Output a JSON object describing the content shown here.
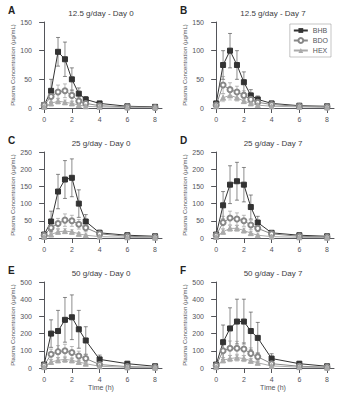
{
  "chart_data": [
    {
      "type": "line",
      "title": "12.5 g/day - Day 0",
      "annotation": "A",
      "ylabel": "Plasma Concentration (µg/mL)",
      "x": [
        0,
        0.5,
        1,
        1.5,
        2,
        2.5,
        3,
        4,
        6,
        8
      ],
      "xlim": [
        -0.3,
        8.5
      ],
      "xticks": [
        0,
        2,
        4,
        6,
        8
      ],
      "ylim": [
        0,
        150
      ],
      "yticks": [
        0,
        50,
        100,
        150
      ],
      "grid": false,
      "series": [
        {
          "name": "BHB",
          "color": "#333333",
          "marker": "square",
          "line_style": "solid",
          "values": [
            5,
            30,
            98,
            85,
            50,
            25,
            15,
            8,
            3,
            2
          ],
          "errors": [
            2,
            20,
            25,
            30,
            20,
            10,
            5,
            3,
            2,
            1
          ]
        },
        {
          "name": "BDO",
          "color": "#888888",
          "marker": "circle_open",
          "line_style": "solid",
          "values": [
            5,
            20,
            28,
            30,
            22,
            12,
            8,
            4,
            2,
            1
          ],
          "errors": [
            2,
            10,
            12,
            12,
            10,
            6,
            4,
            2,
            1,
            1
          ]
        },
        {
          "name": "HEX",
          "color": "#aaaaaa",
          "marker": "triangle",
          "line_style": "solid",
          "values": [
            2,
            8,
            12,
            10,
            8,
            5,
            3,
            2,
            1,
            1
          ],
          "errors": [
            1,
            4,
            5,
            4,
            3,
            2,
            1,
            1,
            0.5,
            0.5
          ]
        }
      ]
    },
    {
      "type": "line",
      "title": "12.5 g/day - Day 7",
      "annotation": "B",
      "ylabel": "Plasma Concentration (µg/mL)",
      "x": [
        0,
        0.5,
        1,
        1.5,
        2,
        2.5,
        3,
        4,
        6,
        8
      ],
      "xlim": [
        -0.3,
        8.5
      ],
      "xticks": [
        0,
        2,
        4,
        6,
        8
      ],
      "ylim": [
        0,
        150
      ],
      "yticks": [
        0,
        50,
        100,
        150
      ],
      "grid": false,
      "legend": "upper right",
      "series": [
        {
          "name": "BHB",
          "color": "#333333",
          "marker": "square",
          "line_style": "solid",
          "values": [
            8,
            75,
            100,
            75,
            45,
            22,
            15,
            8,
            4,
            3
          ],
          "errors": [
            3,
            25,
            30,
            25,
            18,
            10,
            6,
            3,
            2,
            1
          ]
        },
        {
          "name": "BDO",
          "color": "#888888",
          "marker": "circle_open",
          "line_style": "solid",
          "values": [
            5,
            40,
            32,
            28,
            22,
            15,
            10,
            6,
            3,
            2
          ],
          "errors": [
            2,
            15,
            12,
            10,
            8,
            6,
            4,
            2,
            1,
            1
          ]
        },
        {
          "name": "HEX",
          "color": "#aaaaaa",
          "marker": "triangle",
          "line_style": "solid",
          "values": [
            3,
            18,
            22,
            18,
            12,
            8,
            5,
            3,
            2,
            1
          ],
          "errors": [
            1,
            7,
            8,
            6,
            4,
            3,
            2,
            1,
            1,
            0.5
          ]
        }
      ]
    },
    {
      "type": "line",
      "title": "25 g/day - Day 0",
      "annotation": "C",
      "ylabel": "Plasma Concentration (µg/mL)",
      "x": [
        0,
        0.5,
        1,
        1.5,
        2,
        2.5,
        3,
        4,
        6,
        8
      ],
      "xlim": [
        -0.3,
        8.5
      ],
      "xticks": [
        0,
        2,
        4,
        6,
        8
      ],
      "ylim": [
        0,
        250
      ],
      "yticks": [
        0,
        50,
        100,
        150,
        200,
        250
      ],
      "grid": false,
      "series": [
        {
          "name": "BHB",
          "color": "#333333",
          "marker": "square",
          "line_style": "solid",
          "values": [
            10,
            48,
            135,
            170,
            175,
            100,
            48,
            15,
            8,
            5
          ],
          "errors": [
            5,
            30,
            50,
            55,
            55,
            40,
            20,
            8,
            4,
            2
          ]
        },
        {
          "name": "BDO",
          "color": "#888888",
          "marker": "circle_open",
          "line_style": "solid",
          "values": [
            8,
            30,
            42,
            52,
            50,
            40,
            30,
            12,
            5,
            3
          ],
          "errors": [
            3,
            12,
            15,
            18,
            16,
            14,
            12,
            5,
            2,
            1
          ]
        },
        {
          "name": "HEX",
          "color": "#aaaaaa",
          "marker": "triangle",
          "line_style": "solid",
          "values": [
            3,
            10,
            18,
            20,
            18,
            12,
            8,
            4,
            2,
            1
          ],
          "errors": [
            1,
            4,
            6,
            7,
            6,
            4,
            3,
            2,
            1,
            0.5
          ]
        }
      ]
    },
    {
      "type": "line",
      "title": "25 g/day - Day 7",
      "annotation": "D",
      "ylabel": "Plasma Concentration (µg/mL)",
      "x": [
        0,
        0.5,
        1,
        1.5,
        2,
        2.5,
        3,
        4,
        6,
        8
      ],
      "xlim": [
        -0.3,
        8.5
      ],
      "xticks": [
        0,
        2,
        4,
        6,
        8
      ],
      "ylim": [
        0,
        250
      ],
      "yticks": [
        0,
        50,
        100,
        150,
        200,
        250
      ],
      "grid": false,
      "series": [
        {
          "name": "BHB",
          "color": "#333333",
          "marker": "square",
          "line_style": "solid",
          "values": [
            10,
            95,
            155,
            165,
            155,
            90,
            45,
            15,
            8,
            5
          ],
          "errors": [
            5,
            40,
            55,
            55,
            50,
            35,
            18,
            7,
            3,
            2
          ]
        },
        {
          "name": "BDO",
          "color": "#888888",
          "marker": "circle_open",
          "line_style": "solid",
          "values": [
            8,
            45,
            58,
            55,
            50,
            38,
            28,
            12,
            5,
            3
          ],
          "errors": [
            3,
            18,
            20,
            18,
            16,
            14,
            10,
            5,
            2,
            1
          ]
        },
        {
          "name": "HEX",
          "color": "#aaaaaa",
          "marker": "triangle",
          "line_style": "solid",
          "values": [
            3,
            18,
            28,
            28,
            22,
            14,
            8,
            4,
            2,
            1
          ],
          "errors": [
            1,
            6,
            8,
            8,
            7,
            5,
            3,
            2,
            1,
            0.5
          ]
        }
      ]
    },
    {
      "type": "line",
      "title": "50 g/day - Day 0",
      "annotation": "E",
      "ylabel": "Plasma Concentration (µg/mL)",
      "xlabel": "Time (h)",
      "x": [
        0,
        0.5,
        1,
        1.5,
        2,
        2.5,
        3,
        4,
        6,
        8
      ],
      "xlim": [
        -0.3,
        8.5
      ],
      "xticks": [
        0,
        2,
        4,
        6,
        8
      ],
      "ylim": [
        0,
        500
      ],
      "yticks": [
        0,
        100,
        200,
        300,
        400,
        500
      ],
      "grid": false,
      "series": [
        {
          "name": "BHB",
          "color": "#333333",
          "marker": "square",
          "line_style": "solid",
          "values": [
            20,
            200,
            215,
            280,
            295,
            225,
            160,
            50,
            25,
            10
          ],
          "errors": [
            8,
            80,
            120,
            130,
            130,
            110,
            80,
            25,
            10,
            5
          ]
        },
        {
          "name": "BDO",
          "color": "#888888",
          "marker": "circle_open",
          "line_style": "solid",
          "values": [
            15,
            80,
            95,
            100,
            90,
            70,
            55,
            20,
            8,
            4
          ],
          "errors": [
            5,
            30,
            35,
            38,
            35,
            28,
            22,
            8,
            3,
            2
          ]
        },
        {
          "name": "HEX",
          "color": "#aaaaaa",
          "marker": "triangle",
          "line_style": "solid",
          "values": [
            5,
            35,
            45,
            50,
            45,
            35,
            25,
            10,
            4,
            2
          ],
          "errors": [
            2,
            12,
            15,
            18,
            15,
            12,
            9,
            4,
            2,
            1
          ]
        }
      ]
    },
    {
      "type": "line",
      "title": "50 g/day - Day 7",
      "annotation": "F",
      "ylabel": "Plasma Concentration (µg/mL)",
      "xlabel": "Time (h)",
      "x": [
        0,
        0.5,
        1,
        1.5,
        2,
        2.5,
        3,
        4,
        6,
        8
      ],
      "xlim": [
        -0.3,
        8.5
      ],
      "xticks": [
        0,
        2,
        4,
        6,
        8
      ],
      "ylim": [
        0,
        500
      ],
      "yticks": [
        0,
        100,
        200,
        300,
        400,
        500
      ],
      "grid": false,
      "series": [
        {
          "name": "BHB",
          "color": "#333333",
          "marker": "square",
          "line_style": "solid",
          "values": [
            20,
            150,
            230,
            270,
            270,
            215,
            175,
            55,
            25,
            10
          ],
          "errors": [
            8,
            100,
            120,
            130,
            130,
            110,
            90,
            28,
            12,
            5
          ]
        },
        {
          "name": "BDO",
          "color": "#888888",
          "marker": "circle_open",
          "line_style": "solid",
          "values": [
            15,
            100,
            115,
            115,
            110,
            85,
            65,
            25,
            10,
            5
          ],
          "errors": [
            5,
            40,
            42,
            40,
            38,
            32,
            25,
            10,
            4,
            2
          ]
        },
        {
          "name": "HEX",
          "color": "#aaaaaa",
          "marker": "triangle",
          "line_style": "solid",
          "values": [
            5,
            45,
            55,
            60,
            55,
            42,
            30,
            12,
            5,
            2
          ],
          "errors": [
            2,
            15,
            18,
            20,
            18,
            14,
            10,
            5,
            2,
            1
          ]
        }
      ]
    }
  ]
}
